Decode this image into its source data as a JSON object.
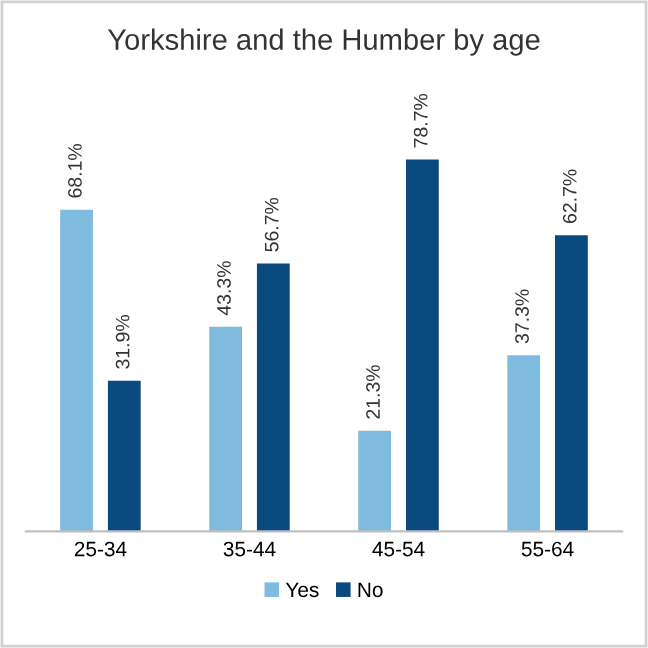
{
  "chart_data": {
    "type": "bar",
    "title": "Yorkshire and the Humber by age",
    "categories": [
      "25-34",
      "35-44",
      "45-54",
      "55-64"
    ],
    "series": [
      {
        "name": "Yes",
        "color": "#7fbadf",
        "values": [
          68.1,
          43.3,
          21.3,
          37.3
        ],
        "value_labels": [
          "68.1%",
          "43.3%",
          "21.3%",
          "37.3%"
        ]
      },
      {
        "name": "No",
        "color": "#0b4a7f",
        "values": [
          31.9,
          56.7,
          78.7,
          62.7
        ],
        "value_labels": [
          "31.9%",
          "56.7%",
          "78.7%",
          "62.7%"
        ]
      }
    ],
    "legend": "bottom",
    "grid": false,
    "tick_labels": "x"
  }
}
